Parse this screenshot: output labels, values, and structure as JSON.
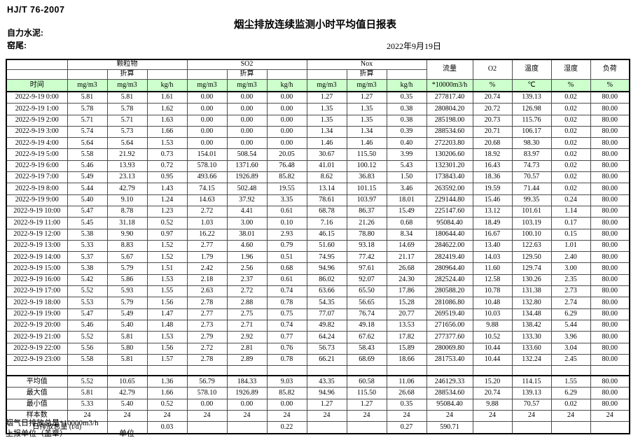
{
  "header": {
    "standard": "HJ/T 76-2007",
    "title": "烟尘排放连续监测小时平均值日报表",
    "company": "自力水泥:",
    "station": "窑尾:",
    "date": "2022年9月19日"
  },
  "colors": {
    "header_green": "#ccffcc",
    "border": "#4d4d4d"
  },
  "table": {
    "time_label": "时间",
    "converted_label": "折算",
    "unit_mg": "mg/m3",
    "unit_kgh": "kg/h",
    "groups": [
      {
        "label": "颗粒物"
      },
      {
        "label": "SO2"
      },
      {
        "label": "Nox"
      }
    ],
    "flow": {
      "label": "流量",
      "unit": "*10000m3/h"
    },
    "o2": {
      "label": "O2",
      "unit": "%"
    },
    "temperature": {
      "label": "温度",
      "unit": "℃"
    },
    "humidity": {
      "label": "湿度",
      "unit": "%"
    },
    "load": {
      "label": "负荷",
      "unit": "%"
    },
    "rows": [
      {
        "time": "2022-9-19 0:00",
        "values": [
          "5.81",
          "5.81",
          "1.61",
          "0.00",
          "0.00",
          "0.00",
          "1.27",
          "1.27",
          "0.35",
          "277817.40",
          "20.74",
          "139.13",
          "0.02",
          "80.00"
        ]
      },
      {
        "time": "2022-9-19 1:00",
        "values": [
          "5.78",
          "5.78",
          "1.62",
          "0.00",
          "0.00",
          "0.00",
          "1.35",
          "1.35",
          "0.38",
          "280804.20",
          "20.72",
          "126.98",
          "0.02",
          "80.00"
        ]
      },
      {
        "time": "2022-9-19 2:00",
        "values": [
          "5.71",
          "5.71",
          "1.63",
          "0.00",
          "0.00",
          "0.00",
          "1.35",
          "1.35",
          "0.38",
          "285198.00",
          "20.73",
          "115.76",
          "0.02",
          "80.00"
        ]
      },
      {
        "time": "2022-9-19 3:00",
        "values": [
          "5.74",
          "5.73",
          "1.66",
          "0.00",
          "0.00",
          "0.00",
          "1.34",
          "1.34",
          "0.39",
          "288534.60",
          "20.71",
          "106.17",
          "0.02",
          "80.00"
        ]
      },
      {
        "time": "2022-9-19 4:00",
        "values": [
          "5.64",
          "5.64",
          "1.53",
          "0.00",
          "0.00",
          "0.00",
          "1.46",
          "1.46",
          "0.40",
          "272203.80",
          "20.68",
          "98.30",
          "0.02",
          "80.00"
        ]
      },
      {
        "time": "2022-9-19 5:00",
        "values": [
          "5.58",
          "21.92",
          "0.73",
          "154.01",
          "508.54",
          "20.05",
          "30.67",
          "115.50",
          "3.99",
          "130206.60",
          "18.92",
          "83.97",
          "0.02",
          "80.00"
        ]
      },
      {
        "time": "2022-9-19 6:00",
        "values": [
          "5.46",
          "13.93",
          "0.72",
          "578.10",
          "1371.60",
          "76.48",
          "41.01",
          "100.12",
          "5.43",
          "132301.20",
          "16.43",
          "74.73",
          "0.02",
          "80.00"
        ]
      },
      {
        "time": "2022-9-19 7:00",
        "values": [
          "5.49",
          "23.13",
          "0.95",
          "493.66",
          "1926.89",
          "85.82",
          "8.62",
          "36.83",
          "1.50",
          "173843.40",
          "18.36",
          "70.57",
          "0.02",
          "80.00"
        ]
      },
      {
        "time": "2022-9-19 8:00",
        "values": [
          "5.44",
          "42.79",
          "1.43",
          "74.15",
          "502.48",
          "19.55",
          "13.14",
          "101.15",
          "3.46",
          "263592.00",
          "19.59",
          "71.44",
          "0.02",
          "80.00"
        ]
      },
      {
        "time": "2022-9-19 9:00",
        "values": [
          "5.40",
          "9.10",
          "1.24",
          "14.63",
          "37.92",
          "3.35",
          "78.61",
          "103.97",
          "18.01",
          "229144.80",
          "15.46",
          "99.35",
          "0.24",
          "80.00"
        ]
      },
      {
        "time": "2022-9-19 10:00",
        "values": [
          "5.47",
          "8.78",
          "1.23",
          "2.72",
          "4.41",
          "0.61",
          "68.78",
          "86.37",
          "15.49",
          "225147.60",
          "13.12",
          "101.61",
          "1.14",
          "80.00"
        ]
      },
      {
        "time": "2022-9-19 11:00",
        "values": [
          "5.45",
          "31.18",
          "0.52",
          "1.03",
          "3.00",
          "0.10",
          "7.16",
          "21.26",
          "0.68",
          "95084.40",
          "18.49",
          "103.19",
          "0.17",
          "80.00"
        ]
      },
      {
        "time": "2022-9-19 12:00",
        "values": [
          "5.38",
          "9.90",
          "0.97",
          "16.22",
          "38.01",
          "2.93",
          "46.15",
          "78.80",
          "8.34",
          "180644.40",
          "16.67",
          "100.10",
          "0.15",
          "80.00"
        ]
      },
      {
        "time": "2022-9-19 13:00",
        "values": [
          "5.33",
          "8.83",
          "1.52",
          "2.77",
          "4.60",
          "0.79",
          "51.60",
          "93.18",
          "14.69",
          "284622.00",
          "13.40",
          "122.63",
          "1.01",
          "80.00"
        ]
      },
      {
        "time": "2022-9-19 14:00",
        "values": [
          "5.37",
          "5.67",
          "1.52",
          "1.79",
          "1.96",
          "0.51",
          "74.95",
          "77.42",
          "21.17",
          "282419.40",
          "14.03",
          "129.50",
          "2.40",
          "80.00"
        ]
      },
      {
        "time": "2022-9-19 15:00",
        "values": [
          "5.38",
          "5.79",
          "1.51",
          "2.42",
          "2.56",
          "0.68",
          "94.96",
          "97.61",
          "26.68",
          "280964.40",
          "11.60",
          "129.74",
          "3.00",
          "80.00"
        ]
      },
      {
        "time": "2022-9-19 16:00",
        "values": [
          "5.42",
          "5.86",
          "1.53",
          "2.18",
          "2.37",
          "0.61",
          "86.02",
          "92.07",
          "24.30",
          "282524.40",
          "12.58",
          "130.26",
          "2.35",
          "80.00"
        ]
      },
      {
        "time": "2022-9-19 17:00",
        "values": [
          "5.52",
          "5.93",
          "1.55",
          "2.63",
          "2.72",
          "0.74",
          "63.66",
          "65.50",
          "17.86",
          "280588.20",
          "10.78",
          "131.38",
          "2.73",
          "80.00"
        ]
      },
      {
        "time": "2022-9-19 18:00",
        "values": [
          "5.53",
          "5.79",
          "1.56",
          "2.78",
          "2.88",
          "0.78",
          "54.35",
          "56.65",
          "15.28",
          "281086.80",
          "10.48",
          "132.80",
          "2.74",
          "80.00"
        ]
      },
      {
        "time": "2022-9-19 19:00",
        "values": [
          "5.47",
          "5.49",
          "1.47",
          "2.77",
          "2.75",
          "0.75",
          "77.07",
          "76.74",
          "20.77",
          "269519.40",
          "10.03",
          "134.48",
          "6.29",
          "80.00"
        ]
      },
      {
        "time": "2022-9-19 20:00",
        "values": [
          "5.46",
          "5.40",
          "1.48",
          "2.73",
          "2.71",
          "0.74",
          "49.82",
          "49.18",
          "13.53",
          "271656.00",
          "9.88",
          "138.42",
          "5.44",
          "80.00"
        ]
      },
      {
        "time": "2022-9-19 21:00",
        "values": [
          "5.52",
          "5.81",
          "1.53",
          "2.79",
          "2.92",
          "0.77",
          "64.24",
          "67.62",
          "17.82",
          "277377.60",
          "10.52",
          "133.30",
          "3.96",
          "80.00"
        ]
      },
      {
        "time": "2022-9-19 22:00",
        "values": [
          "5.56",
          "5.80",
          "1.56",
          "2.72",
          "2.81",
          "0.76",
          "56.73",
          "58.43",
          "15.89",
          "280069.80",
          "10.44",
          "133.60",
          "3.04",
          "80.00"
        ]
      },
      {
        "time": "2022-9-19 23:00",
        "values": [
          "5.58",
          "5.81",
          "1.57",
          "2.78",
          "2.89",
          "0.78",
          "66.21",
          "68.69",
          "18.66",
          "281753.40",
          "10.44",
          "132.24",
          "2.45",
          "80.00"
        ]
      }
    ],
    "summary": [
      {
        "label": "平均值",
        "values": [
          "5.52",
          "10.65",
          "1.36",
          "56.79",
          "184.33",
          "9.03",
          "43.35",
          "60.58",
          "11.06",
          "246129.33",
          "15.20",
          "114.15",
          "1.55",
          "80.00"
        ]
      },
      {
        "label": "最大值",
        "values": [
          "5.81",
          "42.79",
          "1.66",
          "578.10",
          "1926.89",
          "85.82",
          "94.96",
          "115.50",
          "26.68",
          "288534.60",
          "20.74",
          "139.13",
          "6.29",
          "80.00"
        ]
      },
      {
        "label": "最小值",
        "values": [
          "5.33",
          "5.40",
          "0.52",
          "0.00",
          "0.00",
          "0.00",
          "1.27",
          "1.27",
          "0.35",
          "95084.40",
          "9.88",
          "70.57",
          "0.02",
          "80.00"
        ]
      },
      {
        "label": "样本数",
        "values": [
          "24",
          "24",
          "24",
          "24",
          "24",
          "24",
          "24",
          "24",
          "24",
          "24",
          "24",
          "24",
          "24",
          "24"
        ]
      }
    ],
    "total_row": {
      "label": "日排放总量 (t/d)",
      "values": [
        "",
        "0.03",
        "",
        "",
        "0.22",
        "",
        "",
        "0.27",
        "590.71",
        "",
        "",
        "",
        ""
      ]
    }
  },
  "footer": {
    "flow_note": "烟气日排放总量*10000m3/h",
    "report_unit": "上报单位（盖章）",
    "unit_label": "单位"
  }
}
